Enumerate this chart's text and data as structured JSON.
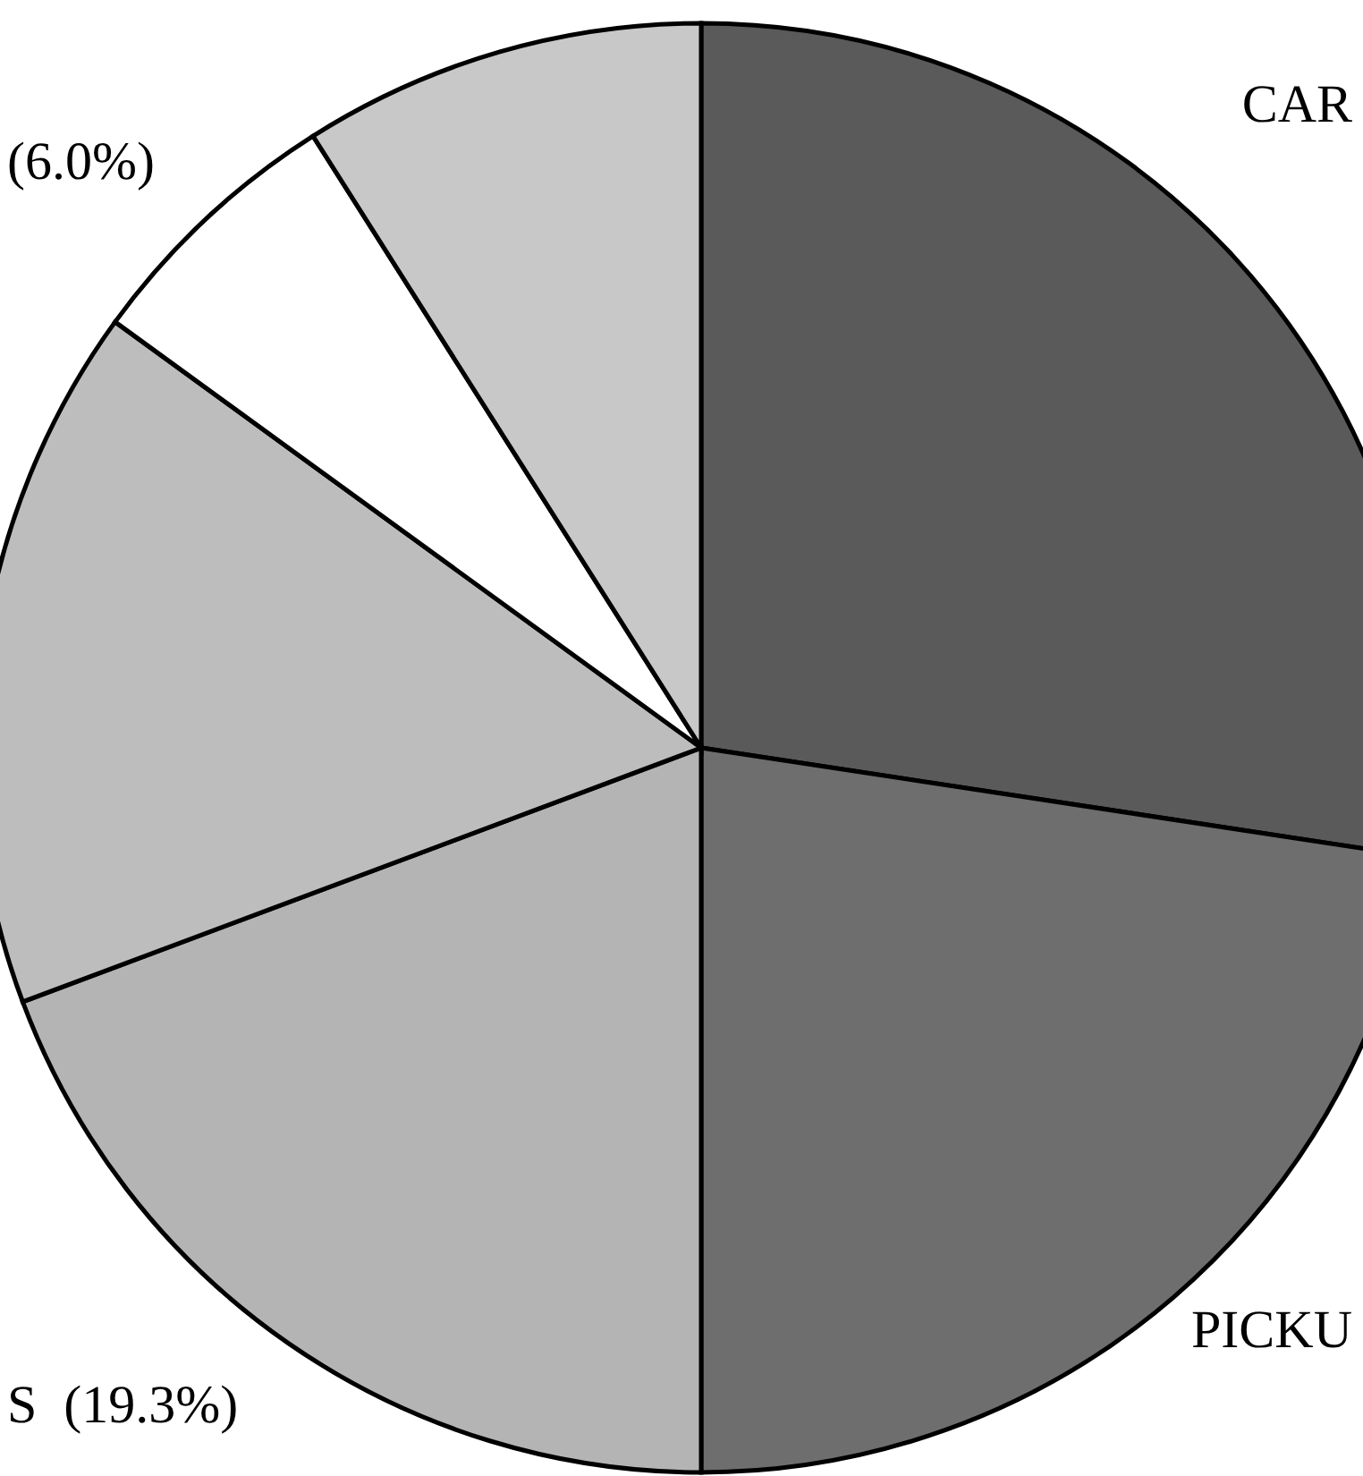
{
  "chart_data": {
    "type": "pie",
    "categories": [
      "CAR",
      "PICKU",
      "S",
      null,
      null,
      null
    ],
    "values": [
      27.4,
      22.6,
      19.3,
      15.7,
      6.0,
      9.0
    ],
    "value_labels": [
      null,
      null,
      "(19.3%)",
      null,
      "(6.0%)",
      null
    ],
    "colors": [
      "#5a5a5a",
      "#6e6e6e",
      "#b4b4b4",
      "#bdbdbd",
      "#ffffff",
      "#c8c8c8"
    ]
  }
}
